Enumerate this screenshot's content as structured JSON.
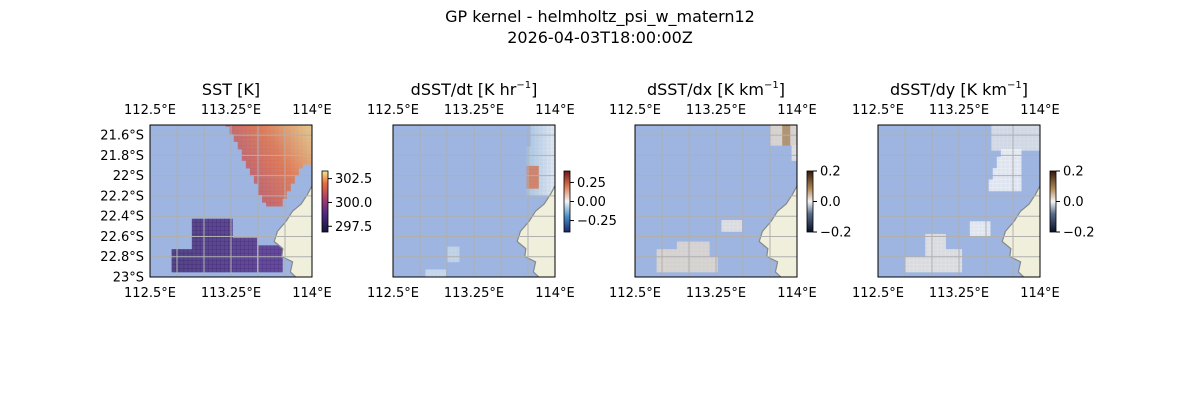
{
  "figure": {
    "title": "GP kernel - helmholtz_psi_w_matern12",
    "subtitle": "2026-04-03T18:00:00Z"
  },
  "colors": {
    "ocean": "#9db5e0",
    "land": "#efefdb",
    "coast": "#888888",
    "grid": "#b0b0b0"
  },
  "chart_data": [
    {
      "type": "heatmap",
      "title": "SST [K]",
      "title_main": "SST [K]",
      "title_sup": "",
      "title_tail": "",
      "x_tick_labels": [
        "112.5°E",
        "113.25°E",
        "114°E"
      ],
      "y_tick_labels": [
        "21.6°S",
        "21.8°S",
        "22°S",
        "22.2°S",
        "22.4°S",
        "22.6°S",
        "22.8°S",
        "23°S"
      ],
      "xlim": [
        112.5,
        114.0
      ],
      "ylim": [
        -23.0,
        -21.5
      ],
      "grid": true,
      "colorbar": {
        "ticks": [
          "302.5",
          "300.0",
          "297.5"
        ],
        "range": [
          296.9,
          303.3
        ],
        "cmap": "thermal"
      }
    },
    {
      "type": "heatmap",
      "title": "dSST/dt [K hr^-1]",
      "title_main": "dSST/dt [K hr",
      "title_sup": "−1",
      "title_tail": "]",
      "x_tick_labels": [
        "112.5°E",
        "113.25°E",
        "114°E"
      ],
      "y_tick_labels": [],
      "xlim": [
        112.5,
        114.0
      ],
      "ylim": [
        -23.0,
        -21.5
      ],
      "grid": true,
      "colorbar": {
        "ticks": [
          "0.25",
          "0.00",
          "−0.25"
        ],
        "range": [
          -0.4,
          0.4
        ],
        "cmap": "balance"
      }
    },
    {
      "type": "heatmap",
      "title": "dSST/dx [K km^-1]",
      "title_main": "dSST/dx [K km",
      "title_sup": "−1",
      "title_tail": "]",
      "x_tick_labels": [
        "112.5°E",
        "113.25°E",
        "114°E"
      ],
      "y_tick_labels": [],
      "xlim": [
        112.5,
        114.0
      ],
      "ylim": [
        -23.0,
        -21.5
      ],
      "grid": true,
      "colorbar": {
        "ticks": [
          "0.2",
          "0.0",
          "−0.2"
        ],
        "range": [
          -0.2,
          0.2
        ],
        "cmap": "diff"
      }
    },
    {
      "type": "heatmap",
      "title": "dSST/dy [K km^-1]",
      "title_main": "dSST/dy [K km",
      "title_sup": "−1",
      "title_tail": "]",
      "x_tick_labels": [
        "112.5°E",
        "113.25°E",
        "114°E"
      ],
      "y_tick_labels": [],
      "xlim": [
        112.5,
        114.0
      ],
      "ylim": [
        -23.0,
        -21.5
      ],
      "grid": true,
      "colorbar": {
        "ticks": [
          "0.2",
          "0.0",
          "−0.2"
        ],
        "range": [
          -0.2,
          0.2
        ],
        "cmap": "diff"
      }
    }
  ]
}
